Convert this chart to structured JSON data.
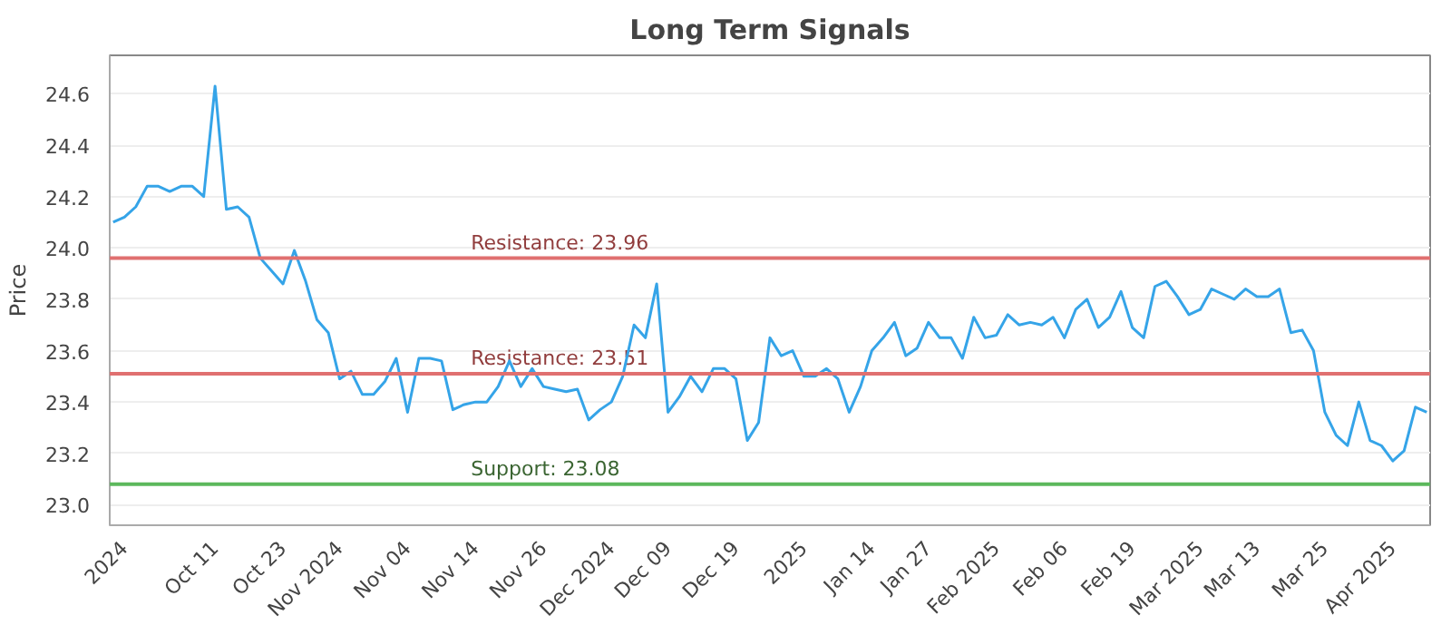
{
  "chart_data": {
    "type": "line",
    "title": "Long Term Signals",
    "ylabel": "Price",
    "categories": [
      null,
      "2024",
      null,
      null,
      null,
      null,
      null,
      null,
      null,
      "Oct 11",
      null,
      null,
      null,
      null,
      null,
      "Oct 23",
      null,
      null,
      null,
      null,
      "Nov 2024",
      null,
      null,
      null,
      null,
      null,
      "Nov 04",
      null,
      null,
      null,
      null,
      null,
      "Nov 14",
      null,
      null,
      null,
      null,
      null,
      "Nov 26",
      null,
      null,
      null,
      null,
      null,
      "Dec 2024",
      null,
      null,
      null,
      null,
      "Dec 09",
      null,
      null,
      null,
      null,
      null,
      "Dec 19",
      null,
      null,
      null,
      null,
      null,
      "2025",
      null,
      null,
      null,
      null,
      null,
      "Jan 14",
      null,
      null,
      null,
      null,
      "Jan 27",
      null,
      null,
      null,
      null,
      null,
      "Feb 2025",
      null,
      null,
      null,
      null,
      null,
      "Feb 06",
      null,
      null,
      null,
      null,
      null,
      "Feb 19",
      null,
      null,
      null,
      null,
      null,
      "Mar 2025",
      null,
      null,
      null,
      null,
      "Mar 13",
      null,
      null,
      null,
      null,
      null,
      "Mar 25",
      null,
      null,
      null,
      null,
      null,
      "Apr 2025",
      null,
      null,
      null
    ],
    "series": [
      {
        "color": "#35a4e8",
        "values": [
          24.1,
          24.12,
          24.16,
          24.24,
          24.24,
          24.22,
          24.24,
          24.24,
          24.2,
          24.63,
          24.15,
          24.16,
          24.12,
          23.96,
          23.91,
          23.86,
          23.99,
          23.87,
          23.72,
          23.67,
          23.49,
          23.52,
          23.43,
          23.43,
          23.48,
          23.57,
          23.36,
          23.57,
          23.57,
          23.56,
          23.37,
          23.39,
          23.4,
          23.4,
          23.46,
          23.56,
          23.46,
          23.53,
          23.46,
          23.45,
          23.44,
          23.45,
          23.33,
          23.37,
          23.4,
          23.5,
          23.7,
          23.65,
          23.86,
          23.36,
          23.42,
          23.5,
          23.44,
          23.53,
          23.53,
          23.49,
          23.25,
          23.32,
          23.65,
          23.58,
          23.6,
          23.5,
          23.5,
          23.53,
          23.49,
          23.36,
          23.46,
          23.6,
          23.65,
          23.71,
          23.58,
          23.61,
          23.71,
          23.65,
          23.65,
          23.57,
          23.73,
          23.65,
          23.66,
          23.74,
          23.7,
          23.71,
          23.7,
          23.73,
          23.65,
          23.76,
          23.8,
          23.69,
          23.73,
          23.83,
          23.69,
          23.65,
          23.85,
          23.87,
          23.81,
          23.74,
          23.76,
          23.84,
          23.82,
          23.8,
          23.84,
          23.81,
          23.81,
          23.84,
          23.67,
          23.68,
          23.6,
          23.36,
          23.27,
          23.23,
          23.4,
          23.25,
          23.23,
          23.17,
          23.21,
          23.38,
          23.36
        ]
      }
    ],
    "ylim": [
      22.92,
      24.75
    ],
    "yticks": [
      {
        "value": 23.0,
        "label": "23.0"
      },
      23.2,
      23.4,
      23.6,
      23.8,
      {
        "value": 24.0,
        "label": "24.0"
      },
      24.2,
      24.4,
      24.6
    ],
    "grid": "y",
    "marker": "none",
    "ref_lines": [
      {
        "axis": "y",
        "value": 23.96,
        "label": "Resistance: 23.96",
        "color": "#e07070"
      },
      {
        "axis": "y",
        "value": 23.51,
        "label": "Resistance: 23.51",
        "color": "#e07070"
      },
      {
        "axis": "y",
        "value": 23.08,
        "label": "Support: 23.08",
        "color": "#5cb85c"
      }
    ]
  }
}
